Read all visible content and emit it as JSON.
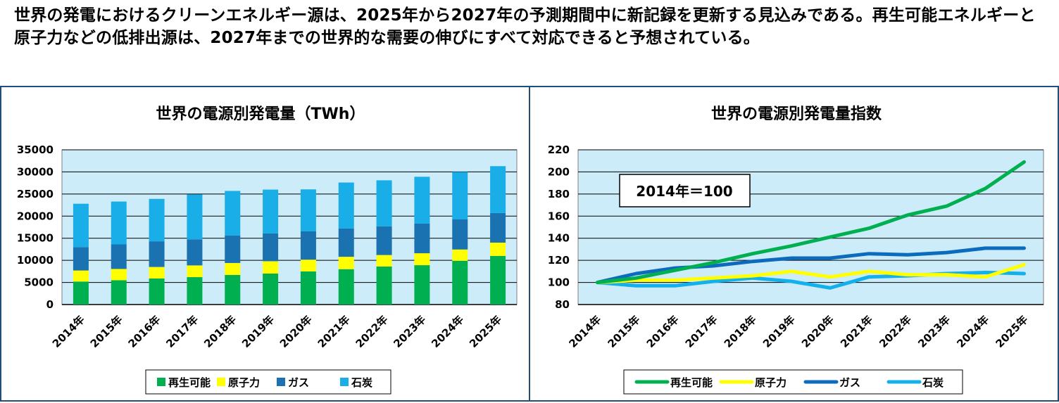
{
  "headline": "世界の発電におけるクリーンエネルギー源は、2025年から2027年の予測期間中に新記録を更新する見込みである。再生可能エネルギーと原子力などの低排出源は、2027年までの世界的な需要の伸びにすべて対応できると予想されている。",
  "colors": {
    "renewable": "#00b050",
    "nuclear": "#ffff00",
    "gas": "#1a72b0",
    "coal": "#19aee8",
    "plot_bg": "#ccecfa",
    "border": "#1f4e79"
  },
  "chart_data": [
    {
      "type": "bar",
      "stacked": true,
      "title": "世界の電源別発電量（TWh）",
      "categories": [
        "2014年",
        "2015年",
        "2016年",
        "2017年",
        "2018年",
        "2019年",
        "2020年",
        "2021年",
        "2022年",
        "2023年",
        "2024年",
        "2025年"
      ],
      "ylim": [
        0,
        35000
      ],
      "yticks": [
        "0",
        "5000",
        "10000",
        "15000",
        "20000",
        "25000",
        "30000",
        "35000"
      ],
      "grid": true,
      "legend_position": "bottom",
      "series": [
        {
          "name": "再生可能",
          "color": "#00b050",
          "values": [
            5200,
            5500,
            5900,
            6200,
            6700,
            7000,
            7500,
            8000,
            8600,
            8900,
            9900,
            11000
          ]
        },
        {
          "name": "原子力",
          "color": "#ffff00",
          "values": [
            2500,
            2550,
            2600,
            2650,
            2700,
            2800,
            2650,
            2800,
            2600,
            2700,
            2550,
            3000
          ]
        },
        {
          "name": "ガス",
          "color": "#1a72b0",
          "values": [
            5300,
            5550,
            5800,
            5900,
            6200,
            6300,
            6400,
            6400,
            6500,
            6700,
            6800,
            6700
          ]
        },
        {
          "name": "石炭",
          "color": "#19aee8",
          "values": [
            9800,
            9700,
            9600,
            10150,
            10100,
            9900,
            9500,
            10400,
            10400,
            10600,
            10750,
            10600
          ]
        }
      ]
    },
    {
      "type": "line",
      "title": "世界の電源別発電量指数",
      "categories": [
        "2014年",
        "2015年",
        "2016年",
        "2017年",
        "2018年",
        "2019年",
        "2020年",
        "2021年",
        "2022年",
        "2023年",
        "2024年",
        "2025年"
      ],
      "ylim": [
        80,
        220
      ],
      "yticks": [
        "80",
        "100",
        "120",
        "140",
        "160",
        "180",
        "200",
        "220"
      ],
      "grid": true,
      "legend_position": "bottom",
      "annotation": "2014年＝100",
      "series": [
        {
          "name": "再生可能",
          "color": "#00b050",
          "values": [
            100,
            104,
            111,
            118,
            126,
            133,
            141,
            149,
            161,
            169,
            185,
            209
          ]
        },
        {
          "name": "原子力",
          "color": "#ffff00",
          "values": [
            100,
            102,
            102,
            104,
            106,
            110,
            105,
            110,
            107,
            107,
            105,
            116
          ]
        },
        {
          "name": "ガス",
          "color": "#0d6bbd",
          "values": [
            100,
            108,
            113,
            115,
            119,
            122,
            122,
            126,
            125,
            127,
            131,
            131
          ]
        },
        {
          "name": "石炭",
          "color": "#14b0ec",
          "values": [
            100,
            97,
            97,
            101,
            104,
            101,
            95,
            105,
            106,
            108,
            109,
            108
          ]
        }
      ]
    }
  ]
}
